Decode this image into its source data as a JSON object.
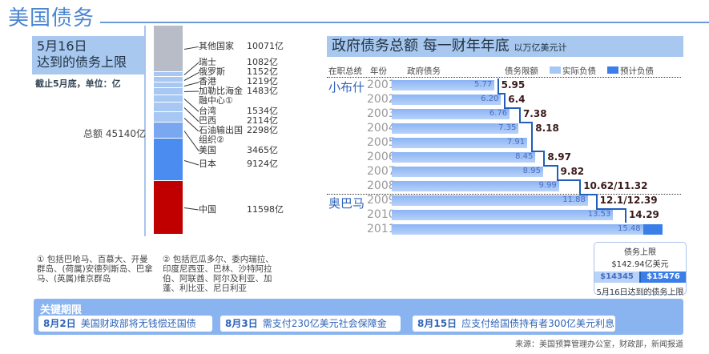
{
  "title": "美国债务",
  "left_panel": {
    "heading_line1": "5月16日",
    "heading_line2": "达到的债务上限",
    "unit_note": "截止5月底，单位：亿",
    "total_label": "总额 45140亿",
    "footnote1": "① 包括巴哈马、百慕大、开曼群岛、(荷属)安德列斯岛、巴拿马、(英属)维京群岛",
    "footnote2": "② 包括厄瓜多尔、委内瑞拉、印度尼西亚、巴林、沙特阿拉伯、阿联酋、阿尔及利亚、加蓬、利比亚、尼日利亚"
  },
  "right_panel": {
    "title": "政府债务总额  每一财年年底",
    "title_unit": "以万亿美元计",
    "col_president": "在职总统",
    "col_year": "年份",
    "col_debt": "政府债务",
    "col_limit": "债务限额",
    "legend_actual": "实际负债",
    "legend_projected": "预计负债",
    "president_bush": "小布什",
    "president_obama": "奥巴马",
    "callout": {
      "line1": "债务上限",
      "line2": "$142.94亿美元",
      "actual": "$14345",
      "projected": "$15476",
      "line3": "5月16日达到的债务上限"
    }
  },
  "deadlines": {
    "title": "关键期限",
    "items": [
      {
        "date": "8月2日",
        "text": "美国财政部将无钱偿还国债"
      },
      {
        "date": "8月3日",
        "text": "需支付230亿美元社会保障金"
      },
      {
        "date": "8月15日",
        "text": "应支付给国债持有者300亿美元利息"
      }
    ]
  },
  "source": "来源：美国预算管理办公室，财政部，新闻报道",
  "colors": {
    "accent": "#4a86d0",
    "china": "#c00000",
    "japan": "#4a8cf0",
    "usa": "#7aa8f0",
    "minor": "#a8c8f4",
    "other": "#b8bcc6",
    "limit_line": "#2060b8",
    "projected": "#3c7ee8"
  },
  "chart_data": [
    {
      "type": "bar",
      "stacked": true,
      "title": "5月16日 达到的债务上限",
      "unit": "亿",
      "categories": [
        "其他国家",
        "瑞士",
        "俄罗斯",
        "香港",
        "加勒比海金融中心①",
        "台湾",
        "巴西",
        "石油输出国组织②",
        "美国",
        "日本",
        "中国"
      ],
      "value_labels": [
        "10071亿",
        "1082亿",
        "1152亿",
        "1219亿",
        "1483亿",
        "1534亿",
        "2114亿",
        "2298亿",
        "3465亿",
        "9124亿",
        "11598亿"
      ],
      "values": [
        10071,
        1082,
        1152,
        1219,
        1483,
        1534,
        2114,
        2298,
        3465,
        9124,
        11598
      ],
      "total": 45140
    },
    {
      "type": "bar",
      "orientation": "horizontal",
      "title": "政府债务总额  每一财年年底",
      "unit": "以万亿美元计",
      "categories": [
        "2001",
        "2002",
        "2003",
        "2004",
        "2005",
        "2006",
        "2007",
        "2008",
        "2009",
        "2010",
        "2011"
      ],
      "series": [
        {
          "name": "实际负债",
          "values": [
            5.77,
            6.2,
            6.76,
            7.35,
            7.91,
            8.45,
            8.95,
            9.99,
            11.88,
            13.53,
            15.48
          ],
          "labels": [
            "5.77",
            "6.20",
            "6.76",
            "7.35",
            "7.91",
            "8.45",
            "8.95",
            "9.99",
            "11.88",
            "13.53",
            "15.48"
          ]
        },
        {
          "name": "债务限额",
          "values": [
            5.95,
            6.4,
            7.38,
            8.18,
            8.18,
            8.97,
            9.82,
            11.32,
            12.39,
            14.29,
            14.29
          ],
          "labels": [
            "5.95",
            "6.4",
            "7.38",
            "8.18",
            "",
            "8.97",
            "9.82",
            "10.62/11.32",
            "12.1/12.39",
            "14.29",
            ""
          ]
        },
        {
          "name": "预计负债",
          "values": [
            null,
            null,
            null,
            null,
            null,
            null,
            null,
            null,
            null,
            null,
            15.476
          ]
        }
      ]
    }
  ]
}
